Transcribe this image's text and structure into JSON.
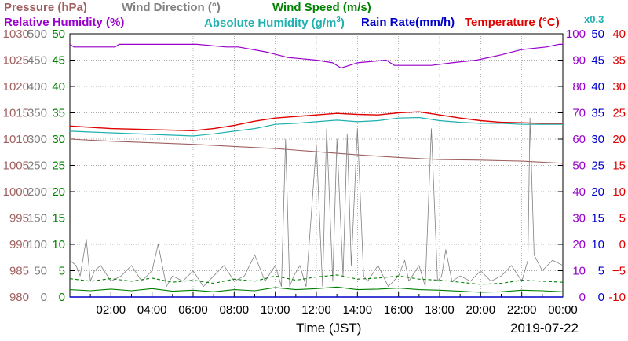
{
  "legend": {
    "pressure": "Pressure (hPa)",
    "wind_direction": "Wind Direction (°)",
    "wind_speed": "Wind Speed (m/s)",
    "relative_humidity": "Relative Humidity (%)",
    "absolute_humidity": "Absolute Humidity (g/m",
    "absolute_humidity_sup": "3",
    "absolute_humidity_close": ")",
    "abs_scale_note": "x0.3",
    "rain_rate": "Rain Rate(mm/h)",
    "temperature": "Temperature (°C)"
  },
  "xaxis": {
    "label": "Time (JST)",
    "date": "2019-07-22",
    "ticks": [
      "02:00",
      "04:00",
      "06:00",
      "08:00",
      "10:00",
      "12:00",
      "14:00",
      "16:00",
      "18:00",
      "20:00",
      "22:00",
      "00:00"
    ],
    "tick_hours": [
      2,
      4,
      6,
      8,
      10,
      12,
      14,
      16,
      18,
      20,
      22,
      24
    ]
  },
  "colors": {
    "pressure": "#a06060",
    "wind_direction": "#808080",
    "wind_speed": "#008000",
    "relative_humidity": "#9900cc",
    "absolute_humidity": "#20b0b0",
    "rain_rate": "#0000cc",
    "temperature": "#e00000",
    "grid": "#909090"
  },
  "chart_data": {
    "type": "line",
    "x_range_hours": [
      0,
      24
    ],
    "grid": true,
    "axes": {
      "pressure": {
        "ticks": [
          980,
          985,
          990,
          995,
          1000,
          1005,
          1010,
          1015,
          1020,
          1025,
          1030
        ],
        "range": [
          980,
          1030
        ]
      },
      "wind_direction": {
        "ticks": [
          0,
          50,
          100,
          150,
          200,
          250,
          300,
          350,
          400,
          450,
          500
        ],
        "range": [
          0,
          500
        ]
      },
      "wind_speed": {
        "ticks": [
          0,
          5,
          10,
          15,
          20,
          25,
          30,
          35,
          40,
          45,
          50
        ],
        "range": [
          0,
          50
        ]
      },
      "relative_humidity": {
        "ticks": [
          0,
          10,
          20,
          30,
          40,
          50,
          60,
          70,
          80,
          90,
          100
        ],
        "range": [
          0,
          100
        ]
      },
      "rain_rate": {
        "ticks": [
          0,
          5,
          10,
          15,
          20,
          25,
          30,
          35,
          40,
          45,
          50
        ],
        "range": [
          0,
          50
        ]
      },
      "temperature": {
        "ticks": [
          "-10",
          "−5",
          "0",
          "5",
          "10",
          "15",
          "20",
          "25",
          "30",
          "35",
          "40"
        ],
        "range": [
          -10,
          40
        ]
      }
    },
    "series": [
      {
        "name": "Relative Humidity (%)",
        "axis": "relative_humidity",
        "x": [
          0,
          0.2,
          2.2,
          2.4,
          6.2,
          7.6,
          8.2,
          9.6,
          10.6,
          12.0,
          12.8,
          13.2,
          14.0,
          15.4,
          15.8,
          17.0,
          17.6,
          18.6,
          19.8,
          21.0,
          22.0,
          23.2,
          23.8,
          24
        ],
        "y": [
          96,
          95,
          95,
          96,
          96,
          95,
          95,
          93,
          91,
          90,
          89,
          87,
          89,
          90,
          88,
          88,
          88,
          89,
          90,
          92,
          94,
          95,
          96,
          96
        ]
      },
      {
        "name": "Temperature (°C)",
        "axis": "temperature",
        "x": [
          0,
          2,
          4,
          6,
          7,
          8,
          9,
          10,
          11,
          12,
          13,
          14,
          15,
          16,
          17,
          18,
          19,
          20,
          21,
          22,
          23,
          24
        ],
        "y": [
          22.5,
          22.0,
          21.8,
          21.6,
          22.0,
          22.6,
          23.4,
          24.0,
          24.3,
          24.6,
          24.9,
          24.7,
          24.6,
          25.0,
          25.2,
          24.6,
          24.0,
          23.5,
          23.2,
          23.1,
          23.0,
          23.0
        ]
      },
      {
        "name": "Absolute Humidity x0.3",
        "axis": "temperature",
        "x": [
          0,
          2,
          4,
          6,
          7,
          8,
          9,
          10,
          11,
          12,
          13,
          14,
          15,
          16,
          17,
          18,
          19,
          20,
          21,
          22,
          23,
          24
        ],
        "y": [
          21.5,
          21.2,
          20.9,
          20.6,
          21.0,
          21.5,
          22.0,
          22.8,
          23.0,
          23.3,
          23.6,
          23.3,
          23.5,
          24.0,
          24.1,
          23.5,
          23.2,
          23.0,
          23.0,
          22.8,
          22.8,
          22.8
        ]
      },
      {
        "name": "Pressure (hPa)",
        "axis": "pressure",
        "x": [
          0,
          2,
          4,
          6,
          8,
          10,
          12,
          14,
          16,
          18,
          20,
          22,
          24
        ],
        "y": [
          1010,
          1009.6,
          1009.3,
          1009.0,
          1008.6,
          1008.2,
          1007.6,
          1007.0,
          1006.5,
          1006.1,
          1006.0,
          1005.8,
          1005.4
        ]
      },
      {
        "name": "Wind Direction (°)",
        "axis": "wind_direction",
        "x": [
          0,
          0.3,
          0.5,
          0.8,
          1.0,
          1.2,
          1.5,
          2.0,
          2.5,
          3.0,
          3.5,
          4.0,
          4.3,
          4.7,
          5.0,
          5.5,
          6.0,
          6.5,
          7.0,
          7.5,
          8.0,
          8.5,
          9.0,
          9.5,
          10.0,
          10.3,
          10.5,
          10.7,
          10.9,
          11.2,
          11.5,
          12.0,
          12.3,
          12.5,
          12.8,
          13.0,
          13.3,
          13.5,
          13.7,
          14.0,
          14.3,
          14.5,
          15.0,
          15.5,
          16.0,
          16.3,
          16.5,
          17.0,
          17.3,
          17.6,
          17.9,
          18.1,
          18.3,
          18.6,
          19.0,
          19.5,
          20.0,
          20.5,
          21.0,
          21.5,
          22.0,
          22.3,
          22.4,
          22.6,
          23.0,
          23.5,
          24
        ],
        "y": [
          70,
          60,
          40,
          110,
          30,
          50,
          60,
          30,
          40,
          60,
          30,
          50,
          100,
          20,
          40,
          30,
          50,
          20,
          40,
          60,
          30,
          40,
          80,
          30,
          60,
          20,
          300,
          20,
          40,
          60,
          20,
          290,
          20,
          320,
          30,
          300,
          40,
          310,
          60,
          320,
          40,
          30,
          60,
          20,
          40,
          70,
          30,
          60,
          20,
          320,
          30,
          40,
          90,
          30,
          40,
          30,
          50,
          30,
          40,
          60,
          30,
          70,
          340,
          80,
          50,
          70,
          60
        ]
      },
      {
        "name": "Wind Speed (m/s) max",
        "axis": "wind_speed",
        "x": [
          0,
          1,
          2,
          3,
          4,
          5,
          6,
          7,
          8,
          9,
          10,
          11,
          12,
          13,
          14,
          15,
          16,
          17,
          18,
          19,
          20,
          21,
          22,
          23,
          24
        ],
        "y": [
          3.5,
          3.0,
          3.5,
          3.0,
          3.6,
          2.8,
          3.2,
          2.6,
          3.4,
          3.0,
          4.0,
          3.2,
          3.8,
          4.2,
          3.4,
          3.6,
          4.0,
          3.4,
          3.2,
          2.8,
          2.4,
          2.6,
          3.2,
          3.0,
          2.8
        ]
      },
      {
        "name": "Wind Speed (m/s) avg",
        "axis": "wind_speed",
        "x": [
          0,
          1,
          2,
          3,
          4,
          5,
          6,
          7,
          8,
          9,
          10,
          11,
          12,
          13,
          14,
          15,
          16,
          17,
          18,
          19,
          20,
          21,
          22,
          23,
          24
        ],
        "y": [
          1.4,
          1.2,
          1.5,
          1.2,
          1.6,
          1.1,
          1.3,
          1.0,
          1.4,
          1.2,
          1.8,
          1.4,
          1.6,
          1.9,
          1.4,
          1.5,
          1.7,
          1.4,
          1.3,
          1.1,
          0.9,
          1.0,
          1.3,
          1.2,
          1.0
        ]
      },
      {
        "name": "Rain Rate(mm/h)",
        "axis": "rain_rate",
        "x": [
          0,
          24
        ],
        "y": [
          0,
          0
        ]
      }
    ]
  }
}
